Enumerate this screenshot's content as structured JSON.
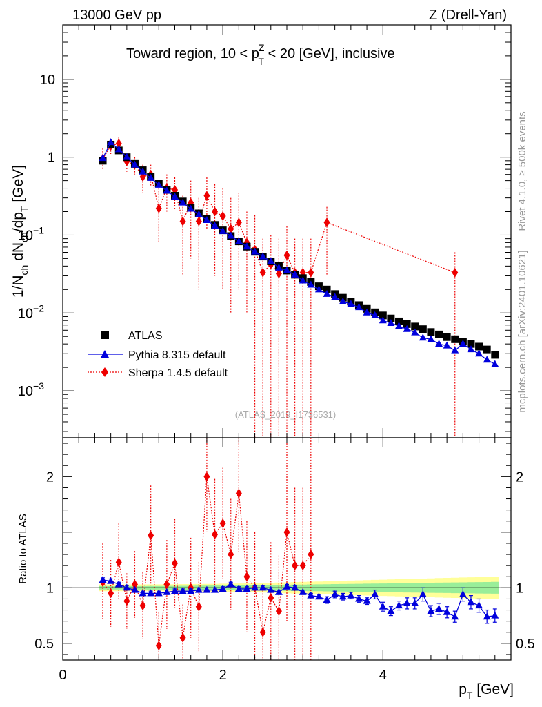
{
  "header": {
    "left": "13000 GeV pp",
    "right": "Z (Drell-Yan)",
    "title_pre": "Toward region, 10 < p",
    "title_sup": "Z",
    "title_sub": "T",
    "title_post": " < 20 [GeV], inclusive",
    "side_top": "Rivet 4.1.0, ≥ 500k events",
    "side_bottom": "mcplots.cern.ch [arXiv:2401.10621]",
    "watermark": "(ATLAS_2019_I1736531)"
  },
  "colors": {
    "atlas": "#000000",
    "pythia": "#0000dd",
    "sherpa": "#ee0000",
    "band_green": "#99ee99",
    "band_yellow": "#ffff99"
  },
  "chart_data": [
    {
      "type": "scatter",
      "ylabel": "1/N_ch dN_ch/dp_T [GeV]",
      "yscale": "log",
      "ylim": [
        0.00025,
        50
      ],
      "xlim": [
        0,
        5.6
      ],
      "y_ticks": [
        {
          "v": 0.001,
          "label": "10",
          "exp": "−3"
        },
        {
          "v": 0.01,
          "label": "10",
          "exp": "−2"
        },
        {
          "v": 0.1,
          "label": "10",
          "exp": "−1"
        },
        {
          "v": 1,
          "label": "1",
          "exp": ""
        },
        {
          "v": 10,
          "label": "10",
          "exp": ""
        }
      ],
      "legend": [
        "ATLAS",
        "Pythia 8.315 default",
        "Sherpa 1.4.5 default"
      ],
      "x": [
        0.5,
        0.6,
        0.7,
        0.8,
        0.9,
        1.0,
        1.1,
        1.2,
        1.3,
        1.4,
        1.5,
        1.6,
        1.7,
        1.8,
        1.9,
        2.0,
        2.1,
        2.2,
        2.3,
        2.4,
        2.5,
        2.6,
        2.7,
        2.8,
        2.9,
        3.0,
        3.1,
        3.2,
        3.3,
        3.4,
        3.5,
        3.6,
        3.7,
        3.8,
        3.9,
        4.0,
        4.1,
        4.2,
        4.3,
        4.4,
        4.5,
        4.6,
        4.7,
        4.8,
        4.9,
        5.0,
        5.1,
        5.2,
        5.3,
        5.4
      ],
      "series": [
        {
          "name": "ATLAS",
          "values": [
            0.9,
            1.45,
            1.22,
            1.0,
            0.82,
            0.68,
            0.56,
            0.46,
            0.38,
            0.32,
            0.27,
            0.225,
            0.19,
            0.16,
            0.135,
            0.115,
            0.097,
            0.083,
            0.071,
            0.061,
            0.053,
            0.046,
            0.04,
            0.035,
            0.031,
            0.028,
            0.025,
            0.022,
            0.02,
            0.0175,
            0.0157,
            0.014,
            0.0126,
            0.0113,
            0.0102,
            0.0093,
            0.0085,
            0.0078,
            0.0072,
            0.0067,
            0.0062,
            0.0057,
            0.0053,
            0.0049,
            0.0046,
            0.0043,
            0.004,
            0.0037,
            0.0034,
            0.0029
          ]
        },
        {
          "name": "Pythia 8.315 default",
          "values": [
            0.97,
            1.55,
            1.26,
            1.0,
            0.8,
            0.65,
            0.54,
            0.44,
            0.37,
            0.31,
            0.26,
            0.217,
            0.184,
            0.155,
            0.131,
            0.112,
            0.098,
            0.083,
            0.071,
            0.061,
            0.053,
            0.046,
            0.038,
            0.035,
            0.031,
            0.026,
            0.023,
            0.02,
            0.0175,
            0.016,
            0.014,
            0.013,
            0.0118,
            0.0101,
            0.0093,
            0.008,
            0.0074,
            0.0068,
            0.0062,
            0.0056,
            0.0048,
            0.0046,
            0.004,
            0.0038,
            0.0033,
            0.004,
            0.0034,
            0.003,
            0.0025,
            0.0022
          ]
        },
        {
          "name": "Sherpa 1.4.5 default",
          "x": [
            0.5,
            0.6,
            0.7,
            0.8,
            0.9,
            1.0,
            1.1,
            1.2,
            1.3,
            1.4,
            1.5,
            1.6,
            1.7,
            1.8,
            1.9,
            2.0,
            2.1,
            2.2,
            2.3,
            2.4,
            2.5,
            2.6,
            2.7,
            2.8,
            2.9,
            3.0,
            3.1,
            3.3,
            4.9
          ],
          "values": [
            0.95,
            1.4,
            1.5,
            0.88,
            0.8,
            0.56,
            0.6,
            0.22,
            0.4,
            0.38,
            0.15,
            0.26,
            0.15,
            0.32,
            0.2,
            0.175,
            0.12,
            0.145,
            0.08,
            0.065,
            0.033,
            0.042,
            0.032,
            0.055,
            0.033,
            0.033,
            0.033,
            0.145,
            0.033
          ],
          "err_up": [
            1.3,
            1.7,
            1.8,
            1.1,
            1.0,
            0.8,
            0.8,
            0.4,
            0.6,
            0.55,
            0.32,
            0.5,
            0.3,
            0.55,
            0.45,
            0.4,
            0.3,
            0.35,
            0.2,
            0.18,
            0.09,
            0.1,
            0.09,
            0.13,
            0.09,
            0.09,
            0.09,
            0.23,
            0.06
          ],
          "err_down": [
            0.7,
            1.1,
            1.2,
            0.65,
            0.6,
            0.35,
            0.42,
            0.08,
            0.2,
            0.22,
            0.03,
            0.05,
            0.02,
            0.12,
            0.03,
            0.02,
            0.01,
            0.02,
            0.01,
            0.00025,
            0.00025,
            0.00025,
            0.00025,
            0.00025,
            0.00025,
            0.00025,
            0.00025,
            0.03,
            0.00025
          ]
        }
      ]
    },
    {
      "type": "scatter",
      "ylabel": "Ratio to ATLAS",
      "xlabel": "p_T [GeV]",
      "ylim": [
        0.35,
        2.35
      ],
      "xlim": [
        0,
        5.6
      ],
      "x_ticks": [
        0,
        2,
        4
      ],
      "y_ticks": [
        0.5,
        1,
        2
      ],
      "band_green_halfwidth": [
        0.015,
        0.015,
        0.015,
        0.015,
        0.015,
        0.015,
        0.016,
        0.016,
        0.017,
        0.017,
        0.018,
        0.018,
        0.019,
        0.019,
        0.02,
        0.02,
        0.021,
        0.022,
        0.022,
        0.023,
        0.024,
        0.025,
        0.026,
        0.027,
        0.028,
        0.029,
        0.03,
        0.031,
        0.032,
        0.033,
        0.034,
        0.035,
        0.036,
        0.037,
        0.038,
        0.039,
        0.04,
        0.041,
        0.042,
        0.043,
        0.044,
        0.045,
        0.046,
        0.047,
        0.048,
        0.049,
        0.05,
        0.051,
        0.052,
        0.053
      ],
      "band_yellow_halfwidth": [
        0.03,
        0.03,
        0.03,
        0.03,
        0.03,
        0.03,
        0.031,
        0.031,
        0.032,
        0.032,
        0.033,
        0.033,
        0.034,
        0.035,
        0.036,
        0.037,
        0.038,
        0.039,
        0.04,
        0.041,
        0.043,
        0.045,
        0.047,
        0.049,
        0.051,
        0.053,
        0.055,
        0.057,
        0.059,
        0.061,
        0.063,
        0.065,
        0.067,
        0.069,
        0.071,
        0.073,
        0.075,
        0.077,
        0.079,
        0.081,
        0.083,
        0.085,
        0.087,
        0.089,
        0.091,
        0.093,
        0.095,
        0.097,
        0.099,
        0.1
      ],
      "series": [
        {
          "name": "Pythia 8.315 default",
          "values": [
            1.07,
            1.06,
            1.03,
            1.0,
            0.98,
            0.95,
            0.95,
            0.95,
            0.96,
            0.97,
            0.97,
            0.97,
            0.98,
            0.98,
            0.98,
            0.99,
            1.03,
            0.99,
            0.99,
            1.0,
            1.0,
            0.98,
            0.96,
            1.01,
            1.0,
            0.96,
            0.93,
            0.92,
            0.89,
            0.94,
            0.92,
            0.93,
            0.9,
            0.88,
            0.94,
            0.83,
            0.79,
            0.84,
            0.86,
            0.86,
            0.94,
            0.79,
            0.81,
            0.78,
            0.74,
            0.94,
            0.87,
            0.84,
            0.74,
            0.75
          ],
          "err": [
            0.02,
            0.02,
            0.02,
            0.02,
            0.02,
            0.02,
            0.02,
            0.02,
            0.02,
            0.02,
            0.02,
            0.02,
            0.02,
            0.02,
            0.02,
            0.02,
            0.02,
            0.02,
            0.02,
            0.02,
            0.02,
            0.02,
            0.02,
            0.02,
            0.02,
            0.02,
            0.02,
            0.02,
            0.03,
            0.03,
            0.03,
            0.03,
            0.03,
            0.03,
            0.04,
            0.04,
            0.04,
            0.04,
            0.05,
            0.05,
            0.06,
            0.05,
            0.05,
            0.05,
            0.05,
            0.06,
            0.06,
            0.06,
            0.06,
            0.06
          ]
        },
        {
          "name": "Sherpa 1.4.5 default",
          "x": [
            0.5,
            0.6,
            0.7,
            0.8,
            0.9,
            1.0,
            1.1,
            1.2,
            1.3,
            1.4,
            1.5,
            1.6,
            1.7,
            1.8,
            1.9,
            2.0,
            2.1,
            2.2,
            2.3,
            2.4,
            2.5,
            2.6,
            2.7,
            2.8,
            2.9,
            3.0,
            3.1
          ],
          "values": [
            1.05,
            0.95,
            1.23,
            0.88,
            1.03,
            0.84,
            1.47,
            0.48,
            1.03,
            1.22,
            0.55,
            1.0,
            0.83,
            2.0,
            1.48,
            1.58,
            1.3,
            1.85,
            1.1,
            1.0,
            0.6,
            0.91,
            0.79,
            1.5,
            1.2,
            1.2,
            1.3
          ],
          "err_up": [
            0.35,
            0.3,
            0.35,
            0.25,
            0.3,
            0.3,
            0.45,
            0.3,
            0.4,
            0.4,
            0.3,
            0.45,
            0.4,
            0.5,
            0.5,
            0.5,
            0.5,
            0.55,
            0.5,
            0.5,
            0.4,
            0.5,
            0.5,
            0.8,
            0.7,
            0.7,
            1.2
          ],
          "err_down": [
            0.35,
            0.3,
            0.35,
            0.25,
            0.3,
            0.3,
            0.45,
            0.3,
            0.4,
            0.4,
            0.3,
            0.45,
            0.4,
            0.5,
            0.5,
            0.5,
            0.5,
            0.55,
            0.5,
            0.65,
            0.3,
            0.6,
            0.5,
            0.8,
            0.9,
            0.9,
            1.0
          ]
        }
      ]
    }
  ]
}
